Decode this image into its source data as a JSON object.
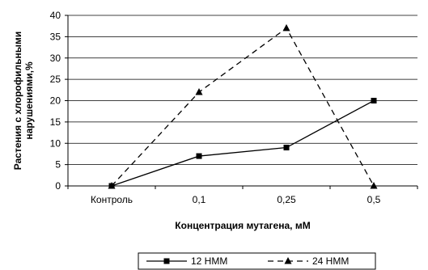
{
  "chart_data": {
    "type": "line",
    "categories": [
      "Контроль",
      "0,1",
      "0,25",
      "0,5"
    ],
    "series": [
      {
        "name": "12 НММ",
        "values": [
          0,
          7,
          9,
          20
        ],
        "color": "#000000",
        "line_style": "solid",
        "marker": "square"
      },
      {
        "name": "24 НММ",
        "values": [
          0,
          22,
          37,
          0
        ],
        "color": "#000000",
        "line_style": "dashed",
        "marker": "triangle"
      }
    ],
    "title": "",
    "xlabel": "Концентрация мутагена, мМ",
    "ylabel": "Растения с хлорофильными нарушениями,%",
    "ylim": [
      0,
      40
    ],
    "yticks": [
      0,
      5,
      10,
      15,
      20,
      25,
      30,
      35,
      40
    ],
    "grid": true,
    "legend_position": "bottom"
  }
}
